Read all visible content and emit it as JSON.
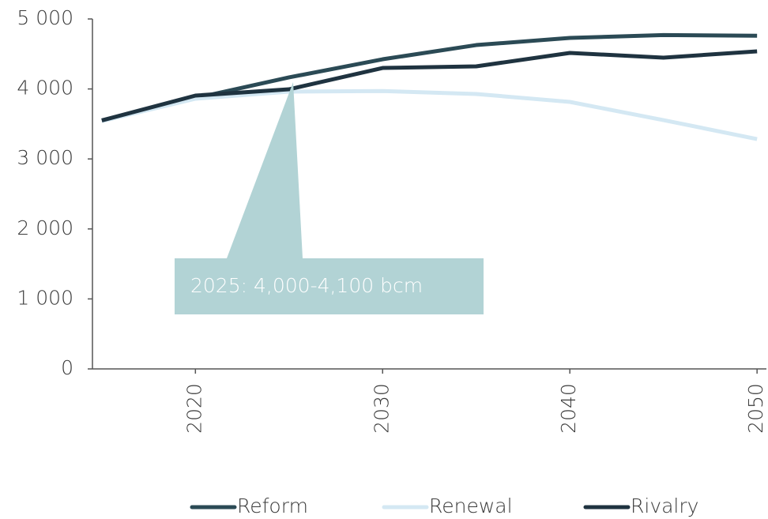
{
  "chart_data": {
    "type": "line",
    "annotation": "2025: 4,000-4,100 bcm",
    "x": [
      2015,
      2020,
      2025,
      2030,
      2035,
      2040,
      2045,
      2050
    ],
    "series": [
      {
        "name": "Reform",
        "color": "#2b4a55",
        "values": [
          3550,
          3870,
          4165,
          4424,
          4627,
          4729,
          4770,
          4760
        ]
      },
      {
        "name": "Renewal",
        "color": "#d4e8f3",
        "values": [
          3540,
          3860,
          3962,
          3970,
          3928,
          3815,
          3555,
          3284
        ]
      },
      {
        "name": "Rivalry",
        "color": "#1f3340",
        "values": [
          3550,
          3905,
          3995,
          4300,
          4323,
          4515,
          4447,
          4537
        ]
      }
    ],
    "xlim": [
      2014.5,
      2050.5
    ],
    "xticks": [
      2020,
      2030,
      2040,
      2050
    ],
    "ylim": [
      0,
      5000
    ],
    "yticks": [
      0,
      {
        "value": 1000,
        "label": "1 000"
      },
      {
        "value": 2000,
        "label": "2 000"
      },
      {
        "value": 3000,
        "label": "3 000"
      },
      {
        "value": 4000,
        "label": "4 000"
      },
      {
        "value": 5000,
        "label": "5 000"
      }
    ],
    "legend": "bottom"
  }
}
